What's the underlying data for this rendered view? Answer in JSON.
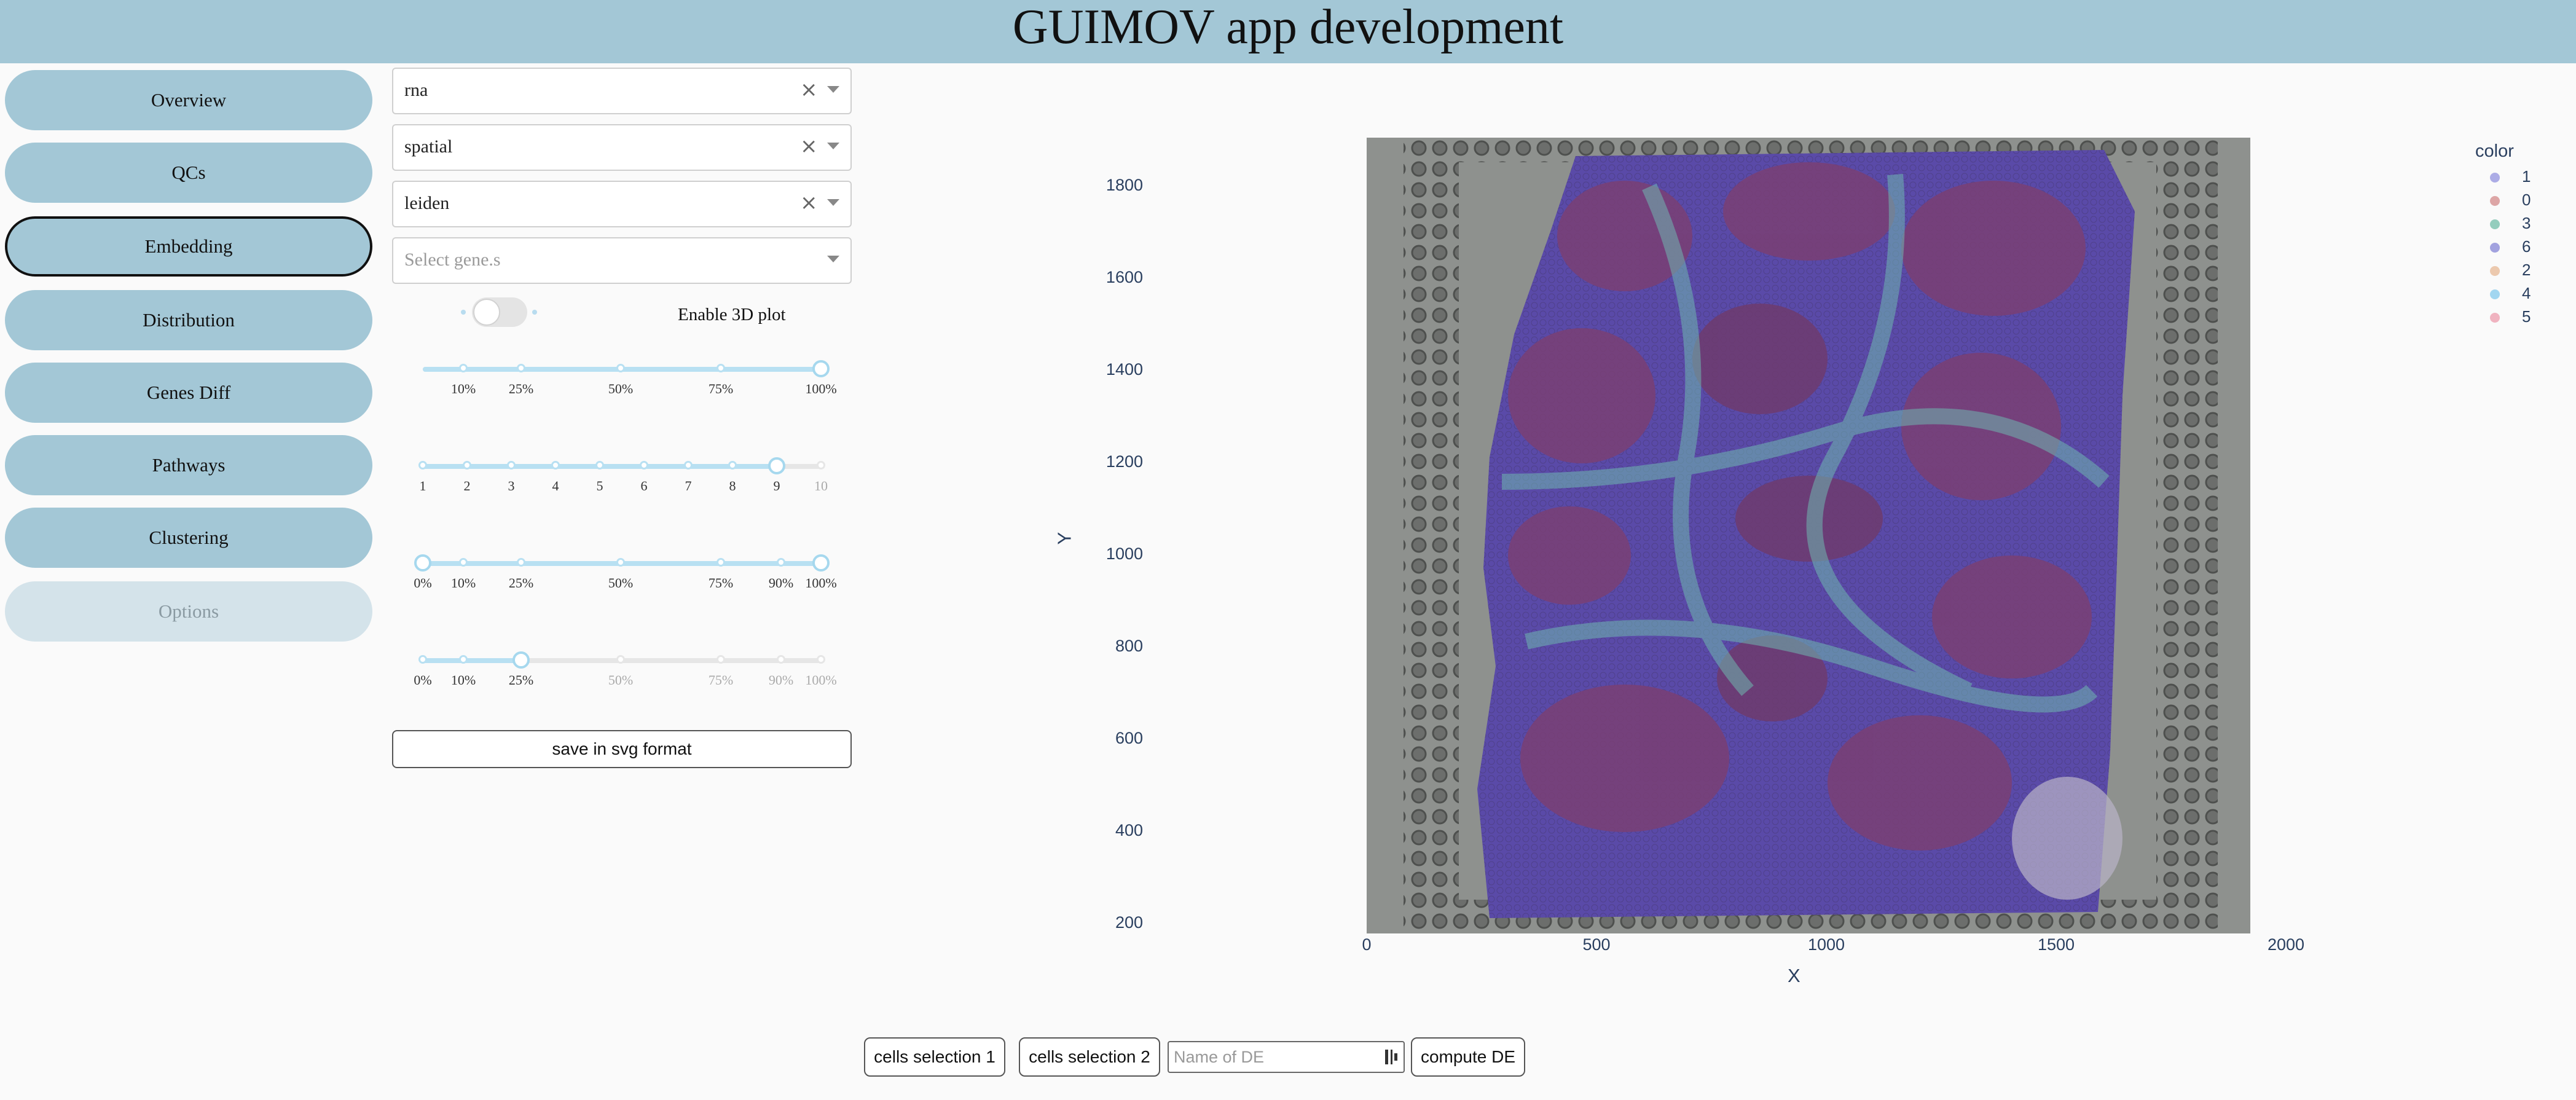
{
  "header": {
    "title": "GUIMOV app development"
  },
  "sidebar": {
    "items": [
      {
        "label": "Overview"
      },
      {
        "label": "QCs"
      },
      {
        "label": "Embedding",
        "active": true
      },
      {
        "label": "Distribution"
      },
      {
        "label": "Genes Diff"
      },
      {
        "label": "Pathways"
      },
      {
        "label": "Clustering"
      },
      {
        "label": "Options",
        "disabled": true
      }
    ]
  },
  "controls": {
    "select_modality": {
      "value": "rna"
    },
    "select_embedding": {
      "value": "spatial"
    },
    "select_color": {
      "value": "leiden"
    },
    "select_genes": {
      "placeholder": "Select gene.s"
    },
    "toggle_3d": {
      "label": "Enable 3D plot",
      "enabled": false
    },
    "slider1": {
      "marks": [
        "10%",
        "25%",
        "50%",
        "75%",
        "100%"
      ],
      "value": "100%"
    },
    "slider2": {
      "marks": [
        "1",
        "2",
        "3",
        "4",
        "5",
        "6",
        "7",
        "8",
        "9",
        "10"
      ],
      "value": "9"
    },
    "slider3": {
      "marks": [
        "0%",
        "10%",
        "25%",
        "50%",
        "75%",
        "90%",
        "100%"
      ],
      "range": [
        "0%",
        "100%"
      ]
    },
    "slider4": {
      "marks": [
        "0%",
        "10%",
        "25%",
        "50%",
        "75%",
        "90%",
        "100%"
      ],
      "value": "25%"
    },
    "save_button": "save in svg format"
  },
  "plot": {
    "type": "scatter",
    "xlabel": "X",
    "ylabel": "Y",
    "x_ticks": [
      "0",
      "500",
      "1000",
      "1500",
      "2000"
    ],
    "y_ticks": [
      "1800",
      "1600",
      "1400",
      "1200",
      "1000",
      "800",
      "600",
      "400",
      "200"
    ],
    "legend_title": "color",
    "legend": [
      {
        "label": "1",
        "color": "#6b6bd6"
      },
      {
        "label": "0",
        "color": "#c46060"
      },
      {
        "label": "3",
        "color": "#40a88a"
      },
      {
        "label": "6",
        "color": "#5a5ac8"
      },
      {
        "label": "2",
        "color": "#e0a070"
      },
      {
        "label": "4",
        "color": "#5ab8e8"
      },
      {
        "label": "5",
        "color": "#e87890"
      }
    ]
  },
  "bottom": {
    "cells_selection_1": "cells selection 1",
    "cells_selection_2": "cells selection 2",
    "de_name_placeholder": "Name of DE",
    "compute_de": "compute DE"
  }
}
